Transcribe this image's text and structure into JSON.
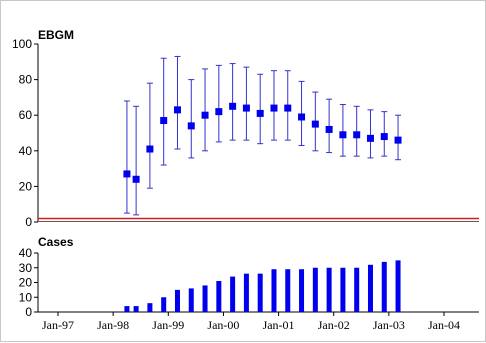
{
  "chart_data": [
    {
      "type": "scatter",
      "title": "EBGM",
      "ylim": [
        0,
        100
      ],
      "yticks": [
        "0",
        "20",
        "40",
        "60",
        "80",
        "100"
      ],
      "reference_line": 2,
      "grid": false,
      "colors": {
        "points": "#0000ee",
        "error_bars": "#3333cc",
        "reference_line": "#d02020"
      },
      "series": [
        {
          "x": [
            "Apr-98",
            "Jun-98",
            "Sep-98",
            "Dec-98",
            "Mar-99",
            "Jun-99",
            "Sep-99",
            "Dec-99",
            "Mar-00",
            "Jun-00",
            "Sep-00",
            "Dec-00",
            "Mar-01",
            "Jun-01",
            "Sep-01",
            "Dec-01",
            "Mar-02",
            "Jun-02",
            "Sep-02",
            "Dec-02",
            "Mar-03"
          ],
          "y": [
            27,
            24,
            41,
            57,
            63,
            54,
            60,
            62,
            65,
            64,
            61,
            64,
            64,
            59,
            55,
            52,
            49,
            49,
            47,
            48,
            46
          ],
          "lower": [
            5,
            4,
            19,
            32,
            41,
            36,
            40,
            45,
            46,
            46,
            44,
            46,
            46,
            43,
            40,
            39,
            37,
            37,
            36,
            37,
            35
          ],
          "upper": [
            68,
            65,
            78,
            92,
            93,
            80,
            86,
            88,
            89,
            87,
            83,
            85,
            85,
            79,
            73,
            69,
            66,
            65,
            63,
            62,
            60
          ]
        }
      ]
    },
    {
      "type": "bar",
      "title": "Cases",
      "ylim": [
        0,
        40
      ],
      "yticks": [
        "0",
        "10",
        "20",
        "30",
        "40"
      ],
      "colors": {
        "bars": "#0000ee"
      },
      "x": [
        "Apr-98",
        "Jun-98",
        "Sep-98",
        "Dec-98",
        "Mar-99",
        "Jun-99",
        "Sep-99",
        "Dec-99",
        "Mar-00",
        "Jun-00",
        "Sep-00",
        "Dec-00",
        "Mar-01",
        "Jun-01",
        "Sep-01",
        "Dec-01",
        "Mar-02",
        "Jun-02",
        "Sep-02",
        "Dec-02",
        "Mar-03"
      ],
      "values": [
        4,
        4,
        6,
        10,
        15,
        16,
        18,
        21,
        24,
        26,
        26,
        29,
        29,
        29,
        30,
        30,
        30,
        30,
        32,
        34,
        35
      ]
    }
  ],
  "x_axis": {
    "tick_labels": [
      "Jan-97",
      "Jan-98",
      "Jan-99",
      "Jan-00",
      "Jan-01",
      "Jan-02",
      "Jan-03",
      "Jan-04"
    ]
  }
}
